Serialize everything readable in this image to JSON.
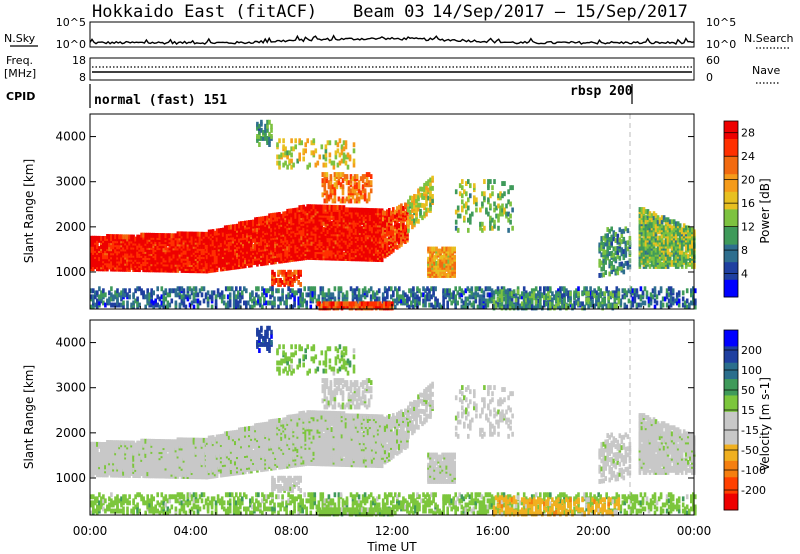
{
  "header": {
    "title": "Hokkaido East (fitACF)",
    "beam": "Beam 03",
    "date_range": "14/Sep/2017 – 15/Sep/2017"
  },
  "noise_panel": {
    "left_label": "N.Sky",
    "right_label": "N.Search",
    "left_top_tick": "10^5",
    "left_bottom_tick": "10^0",
    "right_top_tick": "10^5",
    "right_bottom_tick": "10^0"
  },
  "freq_panel": {
    "left_label_line1": "Freq.",
    "left_label_line2": "[MHz]",
    "left_top_tick": "18",
    "left_bottom_tick": "8",
    "right_top_tick": "60",
    "right_bottom_tick": "0",
    "right_label": "Nave"
  },
  "cpid_panel": {
    "label": "CPID",
    "modes": [
      {
        "name": "normal (fast) 151",
        "start_hour": 0
      },
      {
        "name": "rbsp 200",
        "start_hour": 21.6
      }
    ]
  },
  "colors": {
    "power_scale": [
      "#0000ff",
      "#1f3fa0",
      "#2e6e8e",
      "#3f9a5a",
      "#7dc240",
      "#e8c020",
      "#f59b1a",
      "#f26a10",
      "#ff3000",
      "#ee0000"
    ],
    "velocity_scale": [
      "#ee0000",
      "#ff4000",
      "#f57f10",
      "#f0b020",
      "#c8c8c8",
      "#c8c8c8",
      "#7cc63c",
      "#3f9a5a",
      "#2a6e8c",
      "#1f3fa0",
      "#0000ff"
    ]
  },
  "chart_data": [
    {
      "type": "heatmap",
      "name": "power",
      "ylabel": "Slant Range [km]",
      "ylim": [
        180,
        4500
      ],
      "yticks": [
        "1000",
        "2000",
        "3000",
        "4000"
      ],
      "colorbar_label": "Power [dB]",
      "colorbar_ticks": [
        "4",
        "8",
        "12",
        "16",
        "20",
        "24",
        "28"
      ],
      "colorbar_range": [
        0,
        30
      ]
    },
    {
      "type": "heatmap",
      "name": "velocity",
      "ylabel": "Slant Range [km]",
      "ylim": [
        180,
        4500
      ],
      "yticks": [
        "1000",
        "2000",
        "3000",
        "4000"
      ],
      "colorbar_label": "Velocity [m s-1]",
      "colorbar_ticks": [
        "200",
        "100",
        "50",
        "15",
        "-15",
        "-50",
        "-100",
        "-200"
      ]
    }
  ],
  "x_axis": {
    "label": "Time UT",
    "ticks": [
      "00:00",
      "04:00",
      "08:00",
      "12:00",
      "16:00",
      "20:00",
      "00:00"
    ],
    "xlim_hours": [
      0,
      24
    ]
  }
}
